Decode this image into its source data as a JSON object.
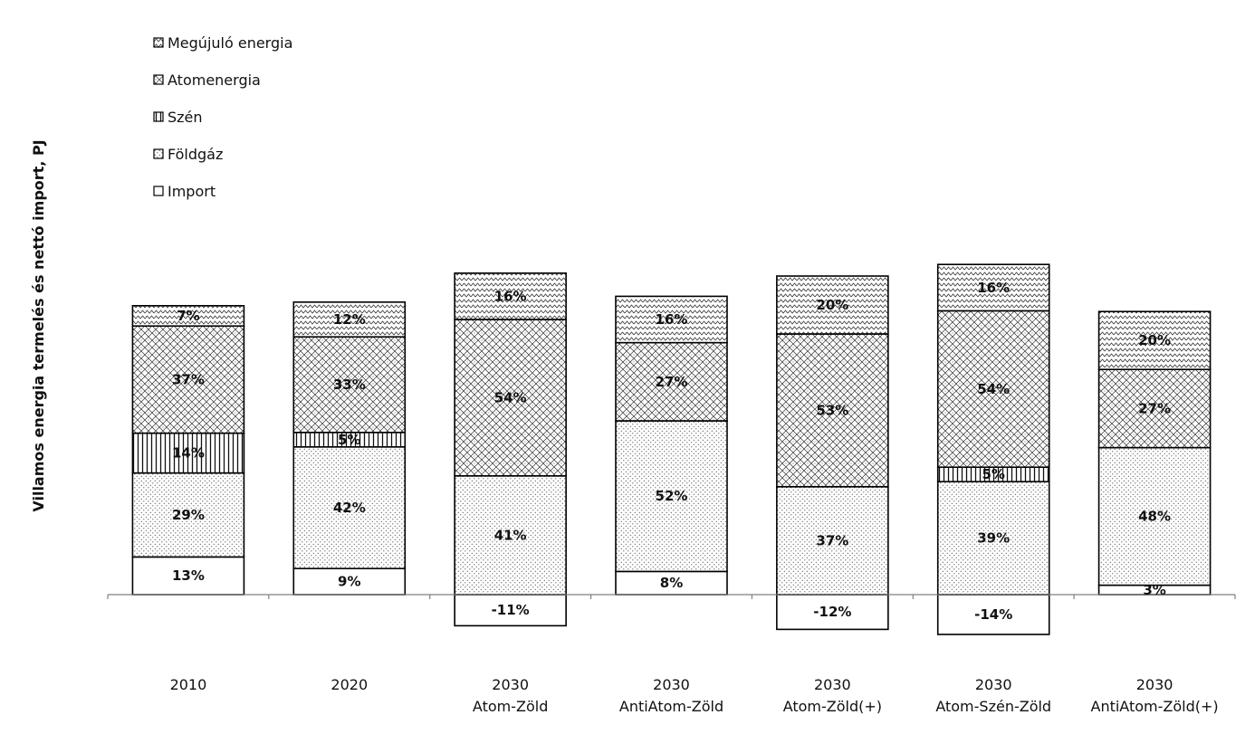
{
  "chart_data": {
    "type": "bar",
    "stacked": true,
    "ylabel": "Villamos energia termelés és nettó import, PJ",
    "categories": [
      [
        "2010"
      ],
      [
        "2020"
      ],
      [
        "2030",
        "Atom-Zöld"
      ],
      [
        "2030",
        "AntiAtom-Zöld"
      ],
      [
        "2030",
        "Atom-Zöld(+)"
      ],
      [
        "2030",
        "Atom-Szén-Zöld"
      ],
      [
        "2030",
        "AntiAtom-Zöld(+)"
      ]
    ],
    "segments": [
      {
        "name": "Import",
        "pattern": "blank",
        "values": [
          52,
          36,
          -43,
          32,
          -48,
          -55,
          13
        ],
        "labels": [
          "13%",
          "9%",
          "-11%",
          "8%",
          "-12%",
          "-14%",
          "3%"
        ]
      },
      {
        "name": "Földgáz",
        "pattern": "dots",
        "values": [
          116,
          168,
          164,
          208,
          149,
          156,
          190
        ],
        "labels": [
          "29%",
          "42%",
          "41%",
          "52%",
          "37%",
          "39%",
          "48%"
        ]
      },
      {
        "name": "Szén",
        "pattern": "vertical-lines",
        "values": [
          55,
          20,
          0,
          0,
          0,
          20,
          0
        ],
        "labels": [
          "14%",
          "5%",
          "",
          "",
          "",
          "5%",
          ""
        ]
      },
      {
        "name": "Atomenergia",
        "pattern": "crosshatch",
        "values": [
          148,
          132,
          216,
          108,
          211,
          216,
          108
        ],
        "labels": [
          "37%",
          "33%",
          "54%",
          "27%",
          "53%",
          "54%",
          "27%"
        ]
      },
      {
        "name": "Megújuló energia",
        "pattern": "zigzag",
        "values": [
          28,
          48,
          64,
          64,
          80,
          64,
          80
        ],
        "labels": [
          "7%",
          "12%",
          "16%",
          "16%",
          "20%",
          "16%",
          "20%"
        ]
      }
    ],
    "legend": {
      "position": "top-left",
      "order": [
        "Megújuló energia",
        "Atomenergia",
        "Szén",
        "Földgáz",
        "Import"
      ]
    },
    "grid": false,
    "colors": {
      "fill": "#ffffff",
      "stroke": "#000000",
      "axis": "#808080"
    }
  }
}
